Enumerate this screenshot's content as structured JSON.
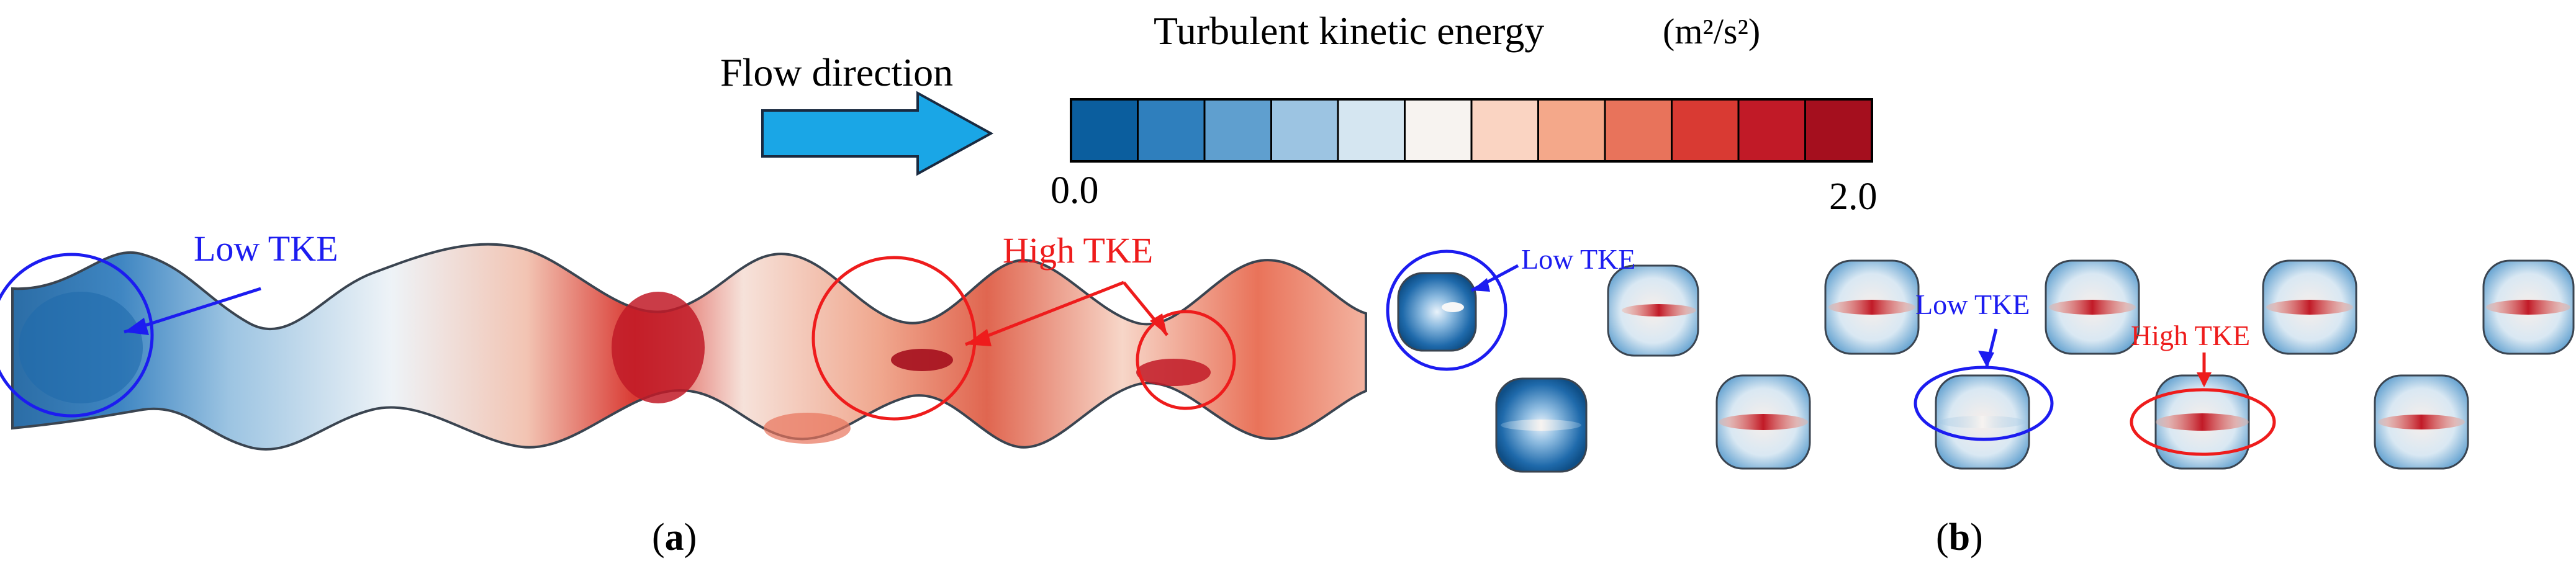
{
  "legend": {
    "flow_label": "Flow direction",
    "title": "Turbulent kinetic energy",
    "unit": "(m²/s²)",
    "min_label": "0.0",
    "max_label": "2.0",
    "colors": [
      "#0b5e9e",
      "#2f7fbd",
      "#5f9fcf",
      "#9cc4e2",
      "#d5e6f1",
      "#f7f3f0",
      "#fad4c2",
      "#f4a88a",
      "#e8735b",
      "#d93a33",
      "#c11a27",
      "#a50f1e"
    ]
  },
  "panels": {
    "a": {
      "label_open": "(",
      "label_letter": "a",
      "label_close": ")"
    },
    "b": {
      "label_open": "(",
      "label_letter": "b",
      "label_close": ")"
    }
  },
  "annotations": {
    "a_low": "Low TKE",
    "a_high": "High TKE",
    "b_low_1": "Low TKE",
    "b_low_2": "Low TKE",
    "b_high": "High TKE"
  },
  "colors": {
    "blue": "#1c1cf0",
    "red": "#ee1c1c",
    "arrow": "#1aa6e6"
  }
}
